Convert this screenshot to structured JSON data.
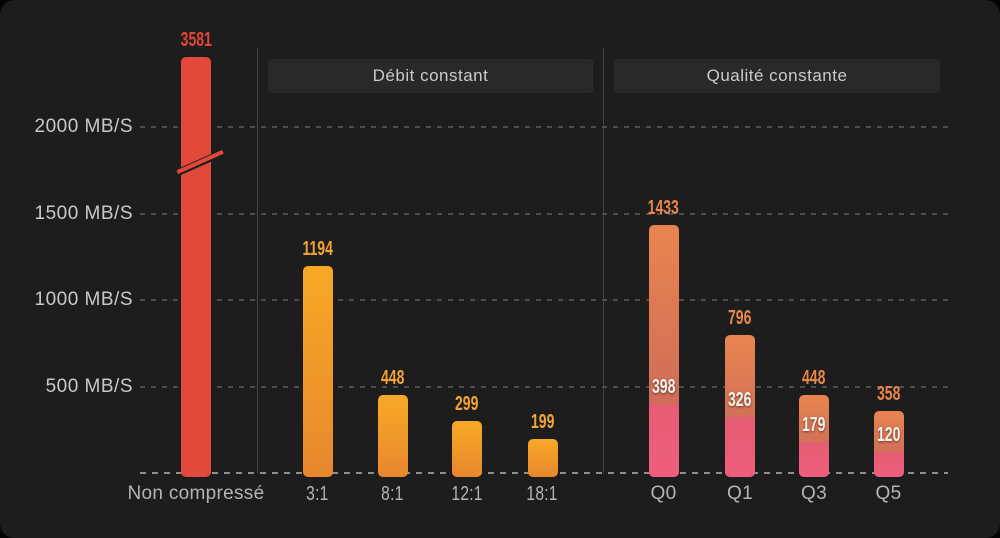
{
  "sections": [
    {
      "label": "Débit constant"
    },
    {
      "label": "Qualité constante"
    }
  ],
  "colors": {
    "background": "#1d1d1e",
    "panel_bg": "#292929",
    "grid": "#4e4e4e",
    "baseline": "#8f8f8f",
    "divider": "#454545",
    "axis_text": "#c9c9c9",
    "category_text": "#b5b5b5",
    "red_bar": "#e2493a",
    "red_label": "#e0463a",
    "amber_top": "#f7a926",
    "amber_bottom": "#e8872e",
    "amber_label": "#f2a434",
    "coral_top": "#e8854f",
    "coral_bottom": "#c4635e",
    "coral_label": "#e8874b",
    "pink_top": "#e65e73",
    "pink_bottom": "#ee5e7e",
    "white_label": "#f6f1ea"
  },
  "chart_data": {
    "type": "bar",
    "title": "",
    "xlabel": "",
    "ylabel": "MB/S",
    "ylim": [
      0,
      2400
    ],
    "grid": "dashed-horizontal",
    "y_axis_break": {
      "applies_to": "Non compressé",
      "between": [
        2000,
        3581
      ]
    },
    "yticks": [
      {
        "value": 500,
        "label": "500 MB/S"
      },
      {
        "value": 1000,
        "label": "1000 MB/S"
      },
      {
        "value": 1500,
        "label": "1500 MB/S"
      },
      {
        "value": 2000,
        "label": "2000 MB/S"
      }
    ],
    "bars": [
      {
        "category": "Non compressé",
        "value": 3581,
        "group": "uncompressed",
        "axis_break": true
      },
      {
        "category": "3:1",
        "value": 1194,
        "group": "debit-constant"
      },
      {
        "category": "8:1",
        "value": 448,
        "group": "debit-constant"
      },
      {
        "category": "12:1",
        "value": 299,
        "group": "debit-constant"
      },
      {
        "category": "18:1",
        "value": 199,
        "group": "debit-constant"
      },
      {
        "category": "Q0",
        "value": 1433,
        "secondary_value": 398,
        "group": "qualite-constante"
      },
      {
        "category": "Q1",
        "value": 796,
        "secondary_value": 326,
        "group": "qualite-constante"
      },
      {
        "category": "Q3",
        "value": 448,
        "secondary_value": 179,
        "group": "qualite-constante"
      },
      {
        "category": "Q5",
        "value": 358,
        "secondary_value": 120,
        "group": "qualite-constante"
      }
    ]
  }
}
